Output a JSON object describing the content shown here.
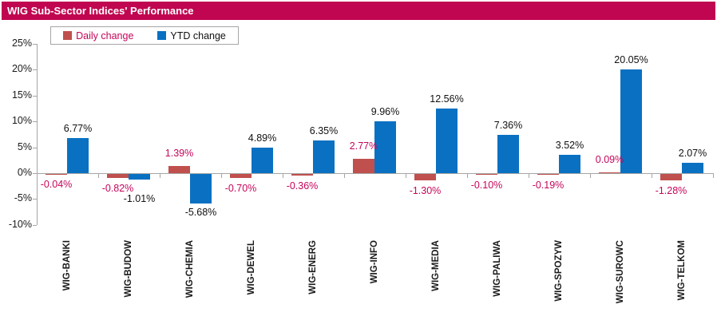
{
  "title": "WIG Sub-Sector Indices' Performance",
  "colors": {
    "title_bar_bg": "#C00650",
    "title_text": "#FFFFFF",
    "daily_bar": "#C0504D",
    "ytd_bar": "#0A71C2",
    "daily_label_text": "#C5055A",
    "ytd_label_text": "#111111",
    "axis_line": "#A6A6A6",
    "axis_text": "#1a1a1a"
  },
  "legend": {
    "items": [
      {
        "label": "Daily change",
        "swatch_color": "#C0504D",
        "text_color": "#C5055A"
      },
      {
        "label": "YTD change",
        "swatch_color": "#0A71C2",
        "text_color": "#111111"
      }
    ]
  },
  "chart_data": {
    "type": "bar",
    "title": "WIG Sub-Sector Indices' Performance",
    "categories": [
      "WIG-BANKI",
      "WIG-BUDOW",
      "WIG-CHEMIA",
      "WIG-DEWEL",
      "WIG-ENERG",
      "WIG-INFO",
      "WIG-MEDIA",
      "WIG-PALIWA",
      "WIG-SPOZYW",
      "WIG-SUROWC",
      "WIG-TELKOM"
    ],
    "series": [
      {
        "name": "Daily change",
        "values": [
          -0.04,
          -0.82,
          1.39,
          -0.7,
          -0.36,
          2.77,
          -1.3,
          -0.1,
          -0.19,
          0.09,
          -1.28
        ]
      },
      {
        "name": "YTD change",
        "values": [
          6.77,
          -1.01,
          -5.68,
          4.89,
          6.35,
          9.96,
          12.56,
          7.36,
          3.52,
          20.05,
          2.07
        ]
      }
    ],
    "value_label_format": "0.00%",
    "ylabel": "",
    "xlabel": "",
    "ylim": [
      -10,
      25
    ],
    "ytick_step": 5,
    "ytick_suffix": "%",
    "grid": false,
    "legend_position": "top-left"
  }
}
